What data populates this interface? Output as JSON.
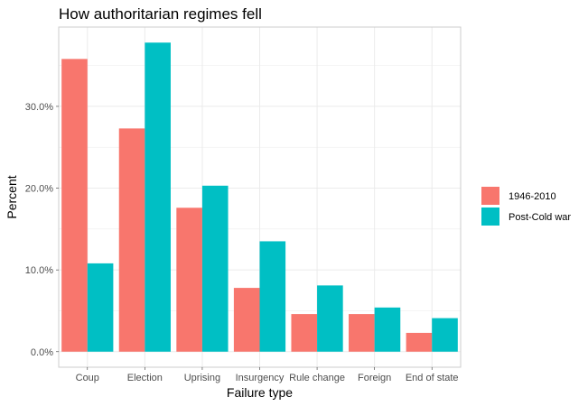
{
  "chart_data": {
    "type": "bar",
    "title": "How authoritarian regimes fell",
    "xlabel": "Failure type",
    "ylabel": "Percent",
    "categories": [
      "Coup",
      "Election",
      "Uprising",
      "Insurgency",
      "Rule change",
      "Foreign",
      "End of state"
    ],
    "series": [
      {
        "name": "1946-2010",
        "color": "#F8766D",
        "values": [
          35.8,
          27.3,
          17.6,
          7.8,
          4.6,
          4.6,
          2.3
        ]
      },
      {
        "name": "Post-Cold war",
        "color": "#00BFC4",
        "values": [
          10.8,
          37.8,
          20.3,
          13.5,
          8.1,
          5.4,
          4.1
        ]
      }
    ],
    "ylim": [
      -1.9,
      39.7
    ],
    "yticks": [
      0,
      10,
      20,
      30
    ],
    "ytick_labels": [
      "0.0%",
      "10.0%",
      "20.0%",
      "30.0%"
    ],
    "grid": true,
    "legend": "right"
  }
}
